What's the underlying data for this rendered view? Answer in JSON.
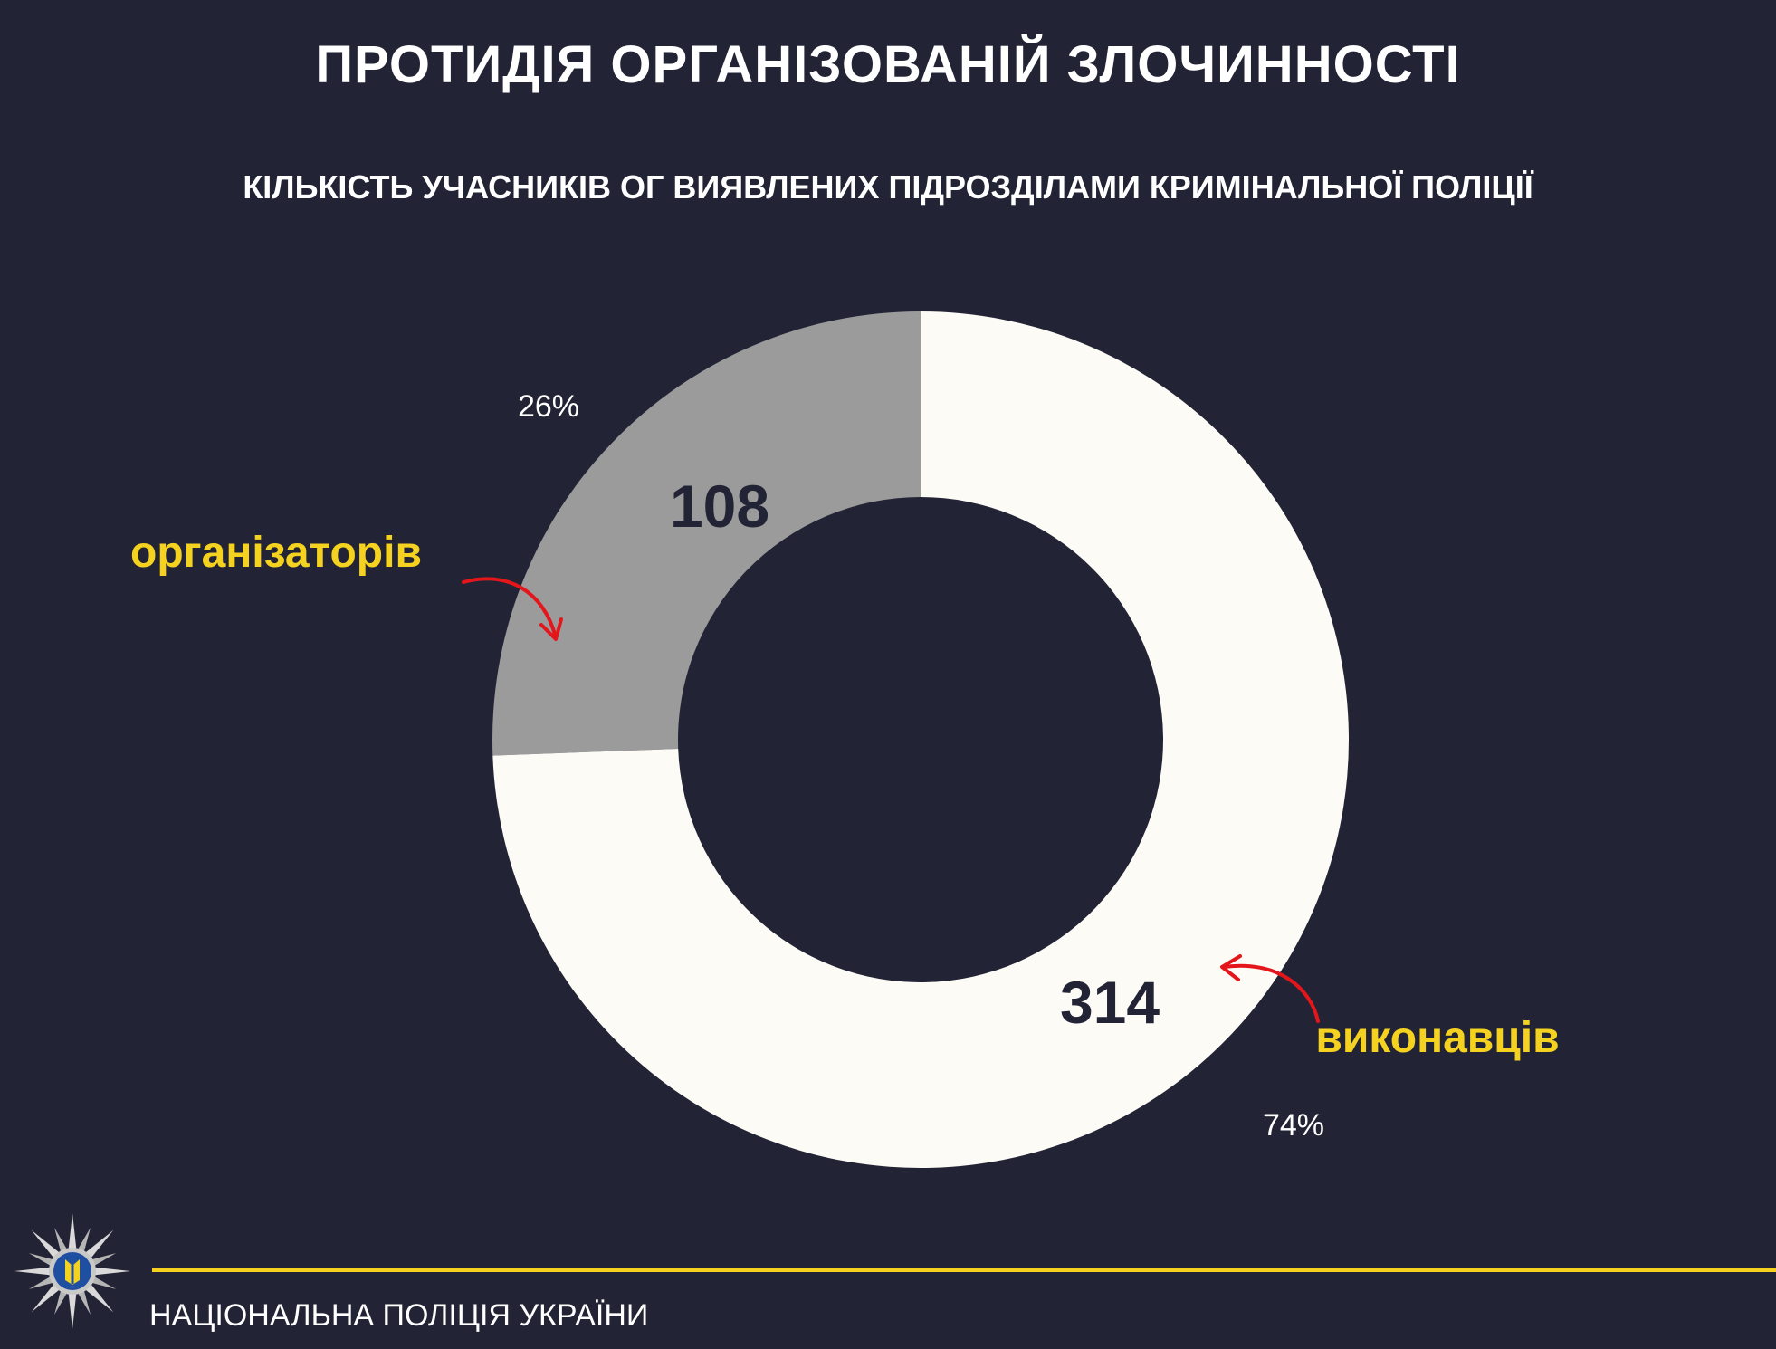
{
  "header": {
    "title": "ПРОТИДІЯ ОРГАНІЗОВАНІЙ ЗЛОЧИННОСТІ",
    "subtitle": "КІЛЬКІСТЬ УЧАСНИКІВ ОГ ВИЯВЛЕНИХ ПІДРОЗДІЛАМИ КРИМІНАЛЬНОЇ ПОЛІЦІЇ"
  },
  "chart_data": {
    "type": "pie",
    "variant": "donut",
    "slices": [
      {
        "label": "організаторів",
        "value": 108,
        "value_label": "108",
        "percent_label": "26%",
        "color": "#9b9b9b"
      },
      {
        "label": "виконавців",
        "value": 314,
        "value_label": "314",
        "percent_label": "74%",
        "color": "#fdfbf5"
      }
    ],
    "start": "12 o'clock",
    "direction": "counter-clockwise for first slice",
    "label_color": "#f4d21f",
    "arrow_color": "#e3161b",
    "value_text_color": "#222436",
    "percent_text_color": "#ffffff"
  },
  "footer": {
    "org_name": "НАЦІОНАЛЬНА ПОЛІЦІЯ УКРАЇНИ",
    "accent": "#f4d21f",
    "logo_icon": "police-star-trident-icon"
  }
}
